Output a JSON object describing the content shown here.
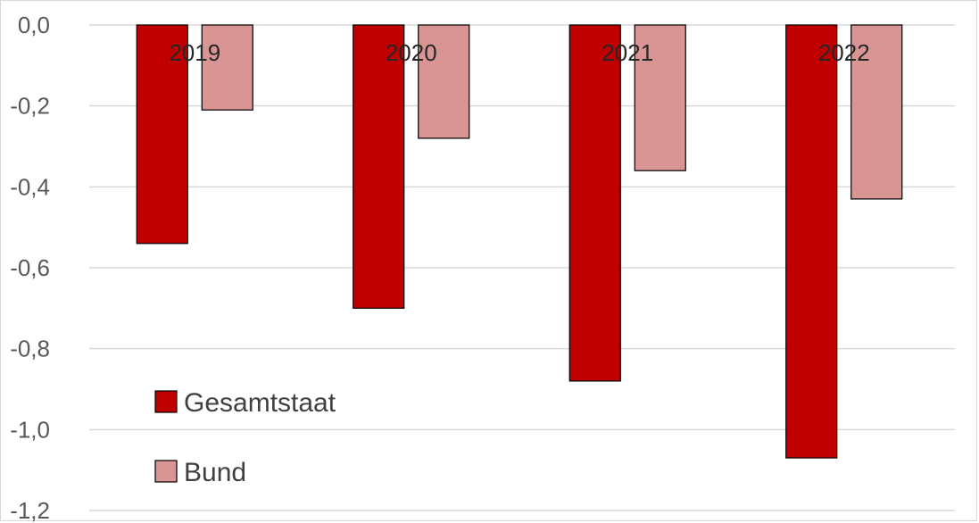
{
  "chart_data": {
    "type": "bar",
    "categories": [
      "2019",
      "2020",
      "2021",
      "2022"
    ],
    "series": [
      {
        "name": "Gesamtstaat",
        "values": [
          -0.54,
          -0.7,
          -0.88,
          -1.07
        ],
        "color": "#c00000"
      },
      {
        "name": "Bund",
        "values": [
          -0.21,
          -0.28,
          -0.36,
          -0.43
        ],
        "color": "#d99594"
      }
    ],
    "y_ticks": [
      "0,0",
      "-0,2",
      "-0,4",
      "-0,6",
      "-0,8",
      "-1,0",
      "-1,2"
    ],
    "ylim": [
      -1.2,
      0
    ],
    "grid": true,
    "legend_position": "bottom-left",
    "title": "",
    "xlabel": "",
    "ylabel": ""
  }
}
